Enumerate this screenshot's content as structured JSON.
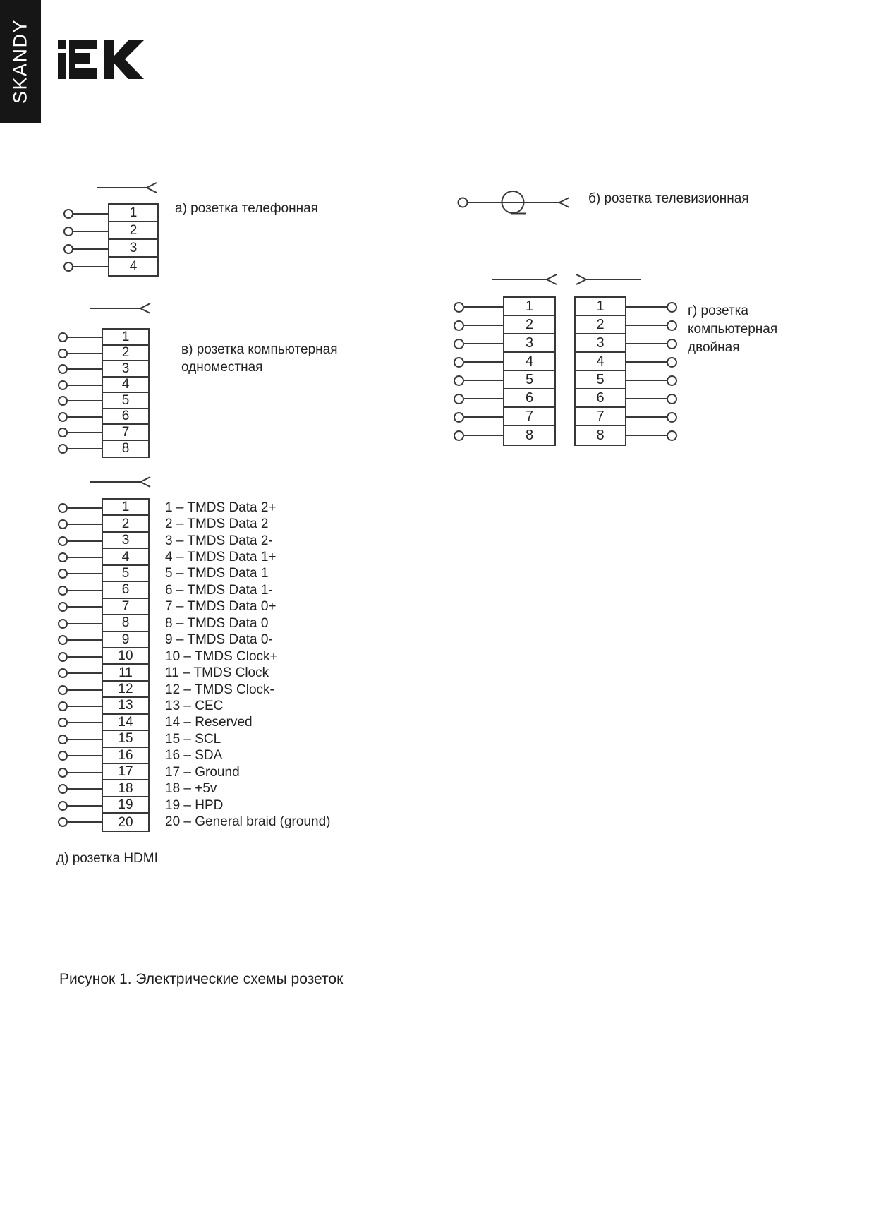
{
  "sidebar": {
    "brand": "SKANDY"
  },
  "logo": {
    "text": "iEK"
  },
  "diagrams": {
    "telephone": {
      "label": "а) розетка телефонная",
      "pins": [
        "1",
        "2",
        "3",
        "4"
      ]
    },
    "tv": {
      "label": "б) розетка телевизионная"
    },
    "computer_single": {
      "label_line1": "в) розетка компьютерная",
      "label_line2": "одноместная",
      "pins": [
        "1",
        "2",
        "3",
        "4",
        "5",
        "6",
        "7",
        "8"
      ]
    },
    "computer_double": {
      "label_line1": "г) розетка",
      "label_line2": "компьютерная",
      "label_line3": "двойная",
      "pins_left": [
        "1",
        "2",
        "3",
        "4",
        "5",
        "6",
        "7",
        "8"
      ],
      "pins_right": [
        "1",
        "2",
        "3",
        "4",
        "5",
        "6",
        "7",
        "8"
      ]
    },
    "hdmi": {
      "label": "д) розетка HDMI",
      "pins": [
        "1",
        "2",
        "3",
        "4",
        "5",
        "6",
        "7",
        "8",
        "9",
        "10",
        "11",
        "12",
        "13",
        "14",
        "15",
        "16",
        "17",
        "18",
        "19",
        "20"
      ],
      "pin_legend": [
        "1 – TMDS Data 2+",
        "2 – TMDS Data 2",
        "3 – TMDS Data 2-",
        "4 – TMDS Data 1+",
        "5 – TMDS Data 1",
        "6 – TMDS Data 1-",
        "7 – TMDS Data 0+",
        "8 – TMDS Data 0",
        "9 – TMDS Data 0-",
        "10 – TMDS Clock+",
        "11 – TMDS Clock",
        "12 – TMDS Clock-",
        "13 – CEC",
        "14 – Reserved",
        "15 – SCL",
        "16 – SDA",
        "17 – Ground",
        "18 – +5v",
        "19 – HPD",
        "20 – General braid (ground)"
      ]
    }
  },
  "figure_caption": "Рисунок 1. Электрические схемы розеток"
}
